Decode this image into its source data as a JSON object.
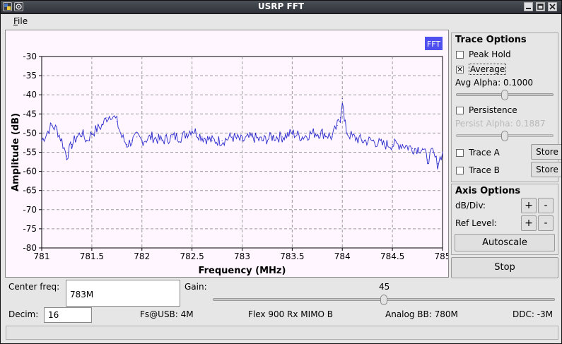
{
  "window": {
    "title": "USRP FFT"
  },
  "titlebar": {
    "app_icon": "python-icon",
    "pin_icon": "pin-icon",
    "buttons": [
      "minimize-icon",
      "maximize-icon",
      "close-icon"
    ]
  },
  "menu": {
    "file_underlined": "F",
    "file_rest": "ile"
  },
  "plot": {
    "tag": "FFT",
    "tag_color": "#4f4ff0",
    "line_color": "#2a2acc",
    "background": "#fff6ff"
  },
  "chart_data": {
    "type": "line",
    "xlabel": "Frequency (MHz)",
    "ylabel": "Amplitude (dB)",
    "xlim": [
      781,
      785
    ],
    "ylim": [
      -80,
      -30
    ],
    "x_ticks": [
      "781",
      "781.5",
      "782",
      "782.5",
      "783",
      "783.5",
      "784",
      "784.5",
      "785"
    ],
    "y_ticks": [
      "-30",
      "-35",
      "-40",
      "-45",
      "-50",
      "-55",
      "-60",
      "-65",
      "-70",
      "-75",
      "-80"
    ],
    "grid": true,
    "series": [
      {
        "x": [
          781.0,
          781.05,
          781.1,
          781.15,
          781.2,
          781.25,
          781.3,
          781.35,
          781.4,
          781.45,
          781.5,
          781.55,
          781.6,
          781.65,
          781.7,
          781.75,
          781.8,
          781.85,
          781.9,
          781.95,
          782.0,
          782.1,
          782.2,
          782.3,
          782.4,
          782.5,
          782.6,
          782.7,
          782.8,
          782.9,
          783.0,
          783.1,
          783.2,
          783.3,
          783.4,
          783.5,
          783.6,
          783.7,
          783.8,
          783.9,
          783.95,
          783.98,
          784.0,
          784.02,
          784.05,
          784.1,
          784.2,
          784.3,
          784.4,
          784.5,
          784.6,
          784.7,
          784.8,
          784.85,
          784.9,
          784.95,
          785.0
        ],
        "values": [
          -52,
          -50,
          -48,
          -49,
          -52,
          -56,
          -53,
          -51,
          -50,
          -52,
          -50,
          -49,
          -48,
          -46,
          -45,
          -47,
          -51,
          -53,
          -52,
          -51,
          -52,
          -51,
          -52,
          -51,
          -51,
          -49,
          -51,
          -52,
          -52,
          -51,
          -52,
          -51,
          -52,
          -51,
          -51,
          -50,
          -51,
          -50,
          -50,
          -51,
          -48,
          -46,
          -41,
          -47,
          -50,
          -51,
          -52,
          -52,
          -53,
          -53,
          -53,
          -54,
          -54,
          -57,
          -55,
          -58,
          -55
        ]
      }
    ]
  },
  "trace_options": {
    "title": "Trace Options",
    "peak_hold": {
      "label": "Peak Hold",
      "checked": false
    },
    "average": {
      "label": "Average",
      "checked": true
    },
    "avg_alpha_label": "Avg Alpha: 0.1000",
    "avg_alpha_level": 0.5,
    "persistence": {
      "label": "Persistence",
      "checked": false
    },
    "persist_alpha_label": "Persist Alpha: 0.1887",
    "persist_alpha_level": 0.5,
    "trace_a": {
      "label": "Trace A",
      "checked": false,
      "button": "Store"
    },
    "trace_b": {
      "label": "Trace B",
      "checked": false,
      "button": "Store"
    }
  },
  "axis_options": {
    "title": "Axis Options",
    "db_div_label": "dB/Div:",
    "ref_level_label": "Ref Level:",
    "plus": "+",
    "minus": "-",
    "autoscale": "Autoscale"
  },
  "stop_button": "Stop",
  "controls": {
    "center_freq_label": "Center freq:",
    "center_freq_value": "783M",
    "gain_label": "Gain:",
    "gain_value": "45",
    "gain_level": 0.5,
    "decim_label": "Decim:",
    "decim_value": "16",
    "fs_usb": "Fs@USB: 4M",
    "board": "Flex 900 Rx MIMO B",
    "analog_bb": "Analog BB: 780M",
    "ddc": "DDC: -3M"
  }
}
